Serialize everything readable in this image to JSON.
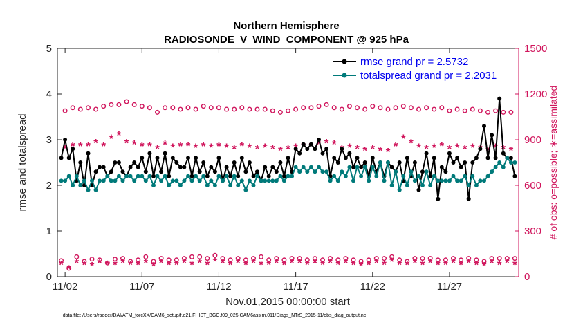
{
  "chart_data": {
    "type": "line",
    "title": "Northern Hemisphere",
    "subtitle": "RADIOSONDE_V_WIND_COMPONENT @ 925 hPa",
    "xlabel": "Nov.01,2015 00:00:00 start",
    "ylabel": "rmse and totalspread",
    "ylabel_right": "# of obs: o=possible; ∗=assimilated",
    "footnote": "data file: /Users/raeder/DAI/ATM_forcXX/CAM6_setup/f.e21.FHIST_BGC.f09_025.CAM6assim.011/Diags_NTrS_2015-11/obs_diag_output.nc",
    "x_tick_labels": [
      "11/02",
      "11/07",
      "11/12",
      "11/17",
      "11/22",
      "11/27"
    ],
    "x_tick_days": [
      2,
      7,
      12,
      17,
      22,
      27
    ],
    "xlim": [
      1.5,
      31.5
    ],
    "ylim": [
      0,
      5
    ],
    "y_ticks": [
      0,
      1,
      2,
      3,
      4,
      5
    ],
    "ylim_right": [
      0,
      1500
    ],
    "y_ticks_right": [
      0,
      300,
      600,
      900,
      1200,
      1500
    ],
    "legend_position": "top-right",
    "series": [
      {
        "name": "rmse grand pr = 2.5732",
        "color": "#000000",
        "axis": "left",
        "x": [
          1.75,
          2.0,
          2.25,
          2.5,
          2.75,
          3.0,
          3.25,
          3.5,
          3.75,
          4.0,
          4.25,
          4.5,
          4.75,
          5.0,
          5.25,
          5.5,
          5.75,
          6.0,
          6.25,
          6.5,
          6.75,
          7.0,
          7.25,
          7.5,
          7.75,
          8.0,
          8.25,
          8.5,
          8.75,
          9.0,
          9.25,
          9.5,
          9.75,
          10.0,
          10.25,
          10.5,
          10.75,
          11.0,
          11.25,
          11.5,
          11.75,
          12.0,
          12.25,
          12.5,
          12.75,
          13.0,
          13.25,
          13.5,
          13.75,
          14.0,
          14.25,
          14.5,
          14.75,
          15.0,
          15.25,
          15.5,
          15.75,
          16.0,
          16.25,
          16.5,
          16.75,
          17.0,
          17.25,
          17.5,
          17.75,
          18.0,
          18.25,
          18.5,
          18.75,
          19.0,
          19.25,
          19.5,
          19.75,
          20.0,
          20.25,
          20.5,
          20.75,
          21.0,
          21.25,
          21.5,
          21.75,
          22.0,
          22.25,
          22.5,
          22.75,
          23.0,
          23.25,
          23.5,
          23.75,
          24.0,
          24.25,
          24.5,
          24.75,
          25.0,
          25.25,
          25.5,
          25.75,
          26.0,
          26.25,
          26.5,
          26.75,
          27.0,
          27.25,
          27.5,
          27.75,
          28.0,
          28.25,
          28.5,
          28.75,
          29.0,
          29.25,
          29.5,
          29.75,
          30.0,
          30.25,
          30.5,
          30.75,
          31.0,
          31.25
        ],
        "values": [
          2.6,
          3.0,
          2.6,
          2.8,
          2.1,
          2.5,
          2.0,
          2.7,
          2.0,
          2.3,
          2.4,
          2.4,
          2.2,
          2.3,
          2.5,
          2.5,
          2.3,
          2.2,
          2.4,
          2.5,
          2.4,
          2.6,
          2.3,
          2.7,
          2.2,
          2.6,
          2.3,
          2.7,
          2.2,
          2.6,
          2.5,
          2.4,
          2.4,
          2.6,
          2.2,
          2.6,
          2.3,
          2.5,
          2.2,
          2.4,
          2.3,
          2.6,
          2.1,
          2.4,
          2.2,
          2.5,
          2.2,
          2.6,
          2.3,
          2.5,
          2.2,
          2.3,
          2.1,
          2.4,
          2.2,
          2.4,
          2.3,
          2.5,
          2.2,
          2.6,
          2.3,
          2.8,
          2.7,
          2.9,
          2.8,
          2.9,
          2.8,
          3.0,
          2.7,
          2.8,
          2.2,
          2.6,
          2.5,
          2.8,
          2.6,
          2.7,
          2.4,
          2.6,
          2.4,
          2.5,
          2.2,
          2.6,
          2.3,
          2.5,
          2.2,
          2.5,
          2.4,
          2.3,
          2.5,
          2.1,
          2.6,
          2.2,
          2.5,
          1.9,
          2.3,
          2.7,
          2.2,
          2.6,
          1.7,
          2.4,
          2.3,
          2.7,
          2.5,
          2.6,
          2.4,
          2.5,
          1.7,
          2.5,
          2.6,
          2.8,
          3.3,
          2.6,
          3.1,
          2.6,
          3.9,
          2.7,
          2.6,
          2.6,
          2.2
        ],
        "marker": "dot"
      },
      {
        "name": "totalspread grand pr = 2.2031",
        "color": "#007a7a",
        "axis": "left",
        "x": [
          1.75,
          2.0,
          2.25,
          2.5,
          2.75,
          3.0,
          3.25,
          3.5,
          3.75,
          4.0,
          4.25,
          4.5,
          4.75,
          5.0,
          5.25,
          5.5,
          5.75,
          6.0,
          6.25,
          6.5,
          6.75,
          7.0,
          7.25,
          7.5,
          7.75,
          8.0,
          8.25,
          8.5,
          8.75,
          9.0,
          9.25,
          9.5,
          9.75,
          10.0,
          10.25,
          10.5,
          10.75,
          11.0,
          11.25,
          11.5,
          11.75,
          12.0,
          12.25,
          12.5,
          12.75,
          13.0,
          13.25,
          13.5,
          13.75,
          14.0,
          14.25,
          14.5,
          14.75,
          15.0,
          15.25,
          15.5,
          15.75,
          16.0,
          16.25,
          16.5,
          16.75,
          17.0,
          17.25,
          17.5,
          17.75,
          18.0,
          18.25,
          18.5,
          18.75,
          19.0,
          19.25,
          19.5,
          19.75,
          20.0,
          20.25,
          20.5,
          20.75,
          21.0,
          21.25,
          21.5,
          21.75,
          22.0,
          22.25,
          22.5,
          22.75,
          23.0,
          23.25,
          23.5,
          23.75,
          24.0,
          24.25,
          24.5,
          24.75,
          25.0,
          25.25,
          25.5,
          25.75,
          26.0,
          26.25,
          26.5,
          26.75,
          27.0,
          27.25,
          27.5,
          27.75,
          28.0,
          28.25,
          28.5,
          28.75,
          29.0,
          29.25,
          29.5,
          29.75,
          30.0,
          30.25,
          30.5,
          30.75,
          31.0,
          31.25
        ],
        "values": [
          2.1,
          2.1,
          2.2,
          2.0,
          2.2,
          2.0,
          2.1,
          1.9,
          2.1,
          1.9,
          2.1,
          2.1,
          2.2,
          2.1,
          2.1,
          2.2,
          2.1,
          2.2,
          2.2,
          2.1,
          2.2,
          2.2,
          2.1,
          2.2,
          2.0,
          2.2,
          2.1,
          2.2,
          2.0,
          2.1,
          2.1,
          2.0,
          2.1,
          2.2,
          2.1,
          2.2,
          2.1,
          2.2,
          2.0,
          2.1,
          2.0,
          2.2,
          2.1,
          2.2,
          2.0,
          2.2,
          2.0,
          2.1,
          1.9,
          2.1,
          2.0,
          2.2,
          2.1,
          2.1,
          2.1,
          2.1,
          2.1,
          2.2,
          2.1,
          2.2,
          2.2,
          2.4,
          2.3,
          2.4,
          2.3,
          2.4,
          2.3,
          2.4,
          2.3,
          2.3,
          2.1,
          2.2,
          2.1,
          2.3,
          2.2,
          2.4,
          2.1,
          2.4,
          2.2,
          2.4,
          2.1,
          2.4,
          2.2,
          2.5,
          2.1,
          2.5,
          2.0,
          2.3,
          1.9,
          2.2,
          2.0,
          2.3,
          2.1,
          2.2,
          2.0,
          2.3,
          2.0,
          2.2,
          2.1,
          2.1,
          2.1,
          2.1,
          2.2,
          2.1,
          2.1,
          2.2,
          2.0,
          2.2,
          2.0,
          2.1,
          2.1,
          2.2,
          2.3,
          2.4,
          2.5,
          2.4,
          2.6,
          2.5,
          2.5
        ],
        "marker": "dot"
      },
      {
        "name": "obs possible",
        "color": "#d0155c",
        "axis": "right",
        "marker": "circle",
        "x": [
          1.75,
          2.0,
          2.25,
          2.5,
          2.75,
          3.0,
          3.25,
          3.5,
          3.75,
          4.0,
          4.25,
          4.5,
          4.75,
          5.0,
          5.25,
          5.5,
          5.75,
          6.0,
          6.25,
          6.5,
          6.75,
          7.0,
          7.25,
          7.5,
          7.75,
          8.0,
          8.25,
          8.5,
          8.75,
          9.0,
          9.25,
          9.5,
          9.75,
          10.0,
          10.25,
          10.5,
          10.75,
          11.0,
          11.25,
          11.5,
          11.75,
          12.0,
          12.25,
          12.5,
          12.75,
          13.0,
          13.25,
          13.5,
          13.75,
          14.0,
          14.25,
          14.5,
          14.75,
          15.0,
          15.25,
          15.5,
          15.75,
          16.0,
          16.25,
          16.5,
          16.75,
          17.0,
          17.25,
          17.5,
          17.75,
          18.0,
          18.25,
          18.5,
          18.75,
          19.0,
          19.25,
          19.5,
          19.75,
          20.0,
          20.25,
          20.5,
          20.75,
          21.0,
          21.25,
          21.5,
          21.75,
          22.0,
          22.25,
          22.5,
          22.75,
          23.0,
          23.25,
          23.5,
          23.75,
          24.0,
          24.25,
          24.5,
          24.75,
          25.0,
          25.25,
          25.5,
          25.75,
          26.0,
          26.25,
          26.5,
          26.75,
          27.0,
          27.25,
          27.5,
          27.75,
          28.0,
          28.25,
          28.5,
          28.75,
          29.0,
          29.25,
          29.5,
          29.75,
          30.0,
          30.25,
          30.5,
          30.75,
          31.0,
          31.25
        ],
        "values": [
          105,
          1090,
          55,
          1110,
          130,
          1100,
          100,
          1110,
          115,
          1100,
          110,
          1120,
          90,
          1130,
          115,
          1130,
          120,
          1150,
          100,
          1130,
          110,
          1120,
          130,
          1110,
          100,
          1080,
          120,
          1110,
          110,
          1110,
          110,
          1100,
          120,
          1110,
          130,
          1100,
          130,
          1120,
          120,
          1110,
          140,
          1110,
          120,
          1100,
          110,
          1100,
          120,
          1110,
          110,
          1100,
          120,
          1100,
          130,
          1100,
          110,
          1090,
          120,
          1080,
          110,
          1090,
          120,
          1100,
          120,
          1110,
          110,
          1110,
          120,
          1120,
          110,
          1130,
          120,
          1110,
          110,
          1100,
          120,
          1120,
          110,
          1110,
          100,
          1100,
          110,
          1120,
          120,
          1110,
          120,
          1100,
          130,
          1110,
          110,
          1120,
          100,
          1110,
          120,
          1100,
          120,
          1110,
          120,
          1100,
          110,
          1110,
          110,
          1090,
          120,
          1100,
          110,
          1090,
          120,
          1100,
          110,
          1090,
          100,
          1080,
          120,
          1090,
          120,
          1080,
          120,
          1080,
          120
        ]
      },
      {
        "name": "obs assimilated",
        "color": "#d0155c",
        "axis": "right",
        "marker": "star",
        "x": [
          1.75,
          2.0,
          2.25,
          2.5,
          2.75,
          3.0,
          3.25,
          3.5,
          3.75,
          4.0,
          4.25,
          4.5,
          4.75,
          5.0,
          5.25,
          5.5,
          5.75,
          6.0,
          6.25,
          6.5,
          6.75,
          7.0,
          7.25,
          7.5,
          7.75,
          8.0,
          8.25,
          8.5,
          8.75,
          9.0,
          9.25,
          9.5,
          9.75,
          10.0,
          10.25,
          10.5,
          10.75,
          11.0,
          11.25,
          11.5,
          11.75,
          12.0,
          12.25,
          12.5,
          12.75,
          13.0,
          13.25,
          13.5,
          13.75,
          14.0,
          14.25,
          14.5,
          14.75,
          15.0,
          15.25,
          15.5,
          15.75,
          16.0,
          16.25,
          16.5,
          16.75,
          17.0,
          17.25,
          17.5,
          17.75,
          18.0,
          18.25,
          18.5,
          18.75,
          19.0,
          19.25,
          19.5,
          19.75,
          20.0,
          20.25,
          20.5,
          20.75,
          21.0,
          21.25,
          21.5,
          21.75,
          22.0,
          22.25,
          22.5,
          22.75,
          23.0,
          23.25,
          23.5,
          23.75,
          24.0,
          24.25,
          24.5,
          24.75,
          25.0,
          25.25,
          25.5,
          25.75,
          26.0,
          26.25,
          26.5,
          26.75,
          27.0,
          27.25,
          27.5,
          27.75,
          28.0,
          28.25,
          28.5,
          28.75,
          29.0,
          29.25,
          29.5,
          29.75,
          30.0,
          30.25,
          30.5,
          30.75,
          31.0,
          31.25
        ],
        "values": [
          80,
          840,
          50,
          860,
          90,
          860,
          80,
          860,
          70,
          880,
          90,
          860,
          80,
          910,
          80,
          930,
          90,
          880,
          80,
          870,
          80,
          860,
          90,
          860,
          70,
          840,
          90,
          870,
          80,
          850,
          80,
          860,
          90,
          860,
          80,
          850,
          90,
          860,
          80,
          850,
          100,
          860,
          90,
          850,
          80,
          840,
          90,
          860,
          80,
          850,
          90,
          840,
          80,
          850,
          80,
          840,
          90,
          830,
          80,
          840,
          90,
          850,
          90,
          860,
          80,
          860,
          90,
          870,
          80,
          880,
          90,
          870,
          80,
          840,
          90,
          850,
          80,
          840,
          70,
          830,
          80,
          840,
          90,
          830,
          80,
          820,
          100,
          860,
          80,
          910,
          80,
          880,
          90,
          850,
          80,
          840,
          90,
          850,
          80,
          860,
          80,
          840,
          90,
          850,
          80,
          840,
          90,
          850,
          80,
          840,
          70,
          830,
          90,
          850,
          80,
          840,
          90,
          830,
          80
        ]
      }
    ]
  }
}
